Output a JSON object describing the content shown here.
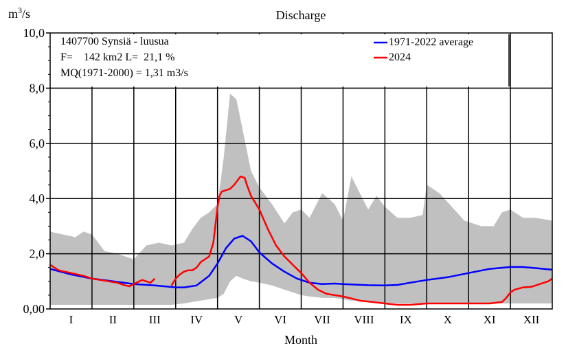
{
  "chart_data": {
    "type": "area",
    "title": "Discharge",
    "ylabel": "m3/s",
    "ylabel_base": "m",
    "ylabel_sup": "3",
    "ylabel_tail": "/s",
    "xlabel": "Month",
    "ylim": [
      0,
      10
    ],
    "ytick_values": [
      0,
      2,
      4,
      6,
      8,
      10
    ],
    "ytick_labels": [
      "0,00",
      "2,0",
      "4,0",
      "6,0",
      "8,0",
      "10,0"
    ],
    "categories": [
      "I",
      "II",
      "III",
      "IV",
      "V",
      "VI",
      "VII",
      "VIII",
      "IX",
      "X",
      "XI",
      "XII"
    ],
    "station": {
      "line1": "1407700 Synsiä - luusua",
      "line2": "F=    142 km2 L=  21,1 %",
      "line3": "MQ(1971-2000) = 1,31 m3/s"
    },
    "legend": [
      {
        "name": "1971-2022 average",
        "color": "#0000ff"
      },
      {
        "name": "2024",
        "color": "#ff0000"
      }
    ],
    "band": {
      "name": "1971-2022 min-max range",
      "color": "#c0c0c0",
      "x": [
        0,
        0.3,
        0.6,
        0.8,
        1.0,
        1.3,
        1.6,
        2.0,
        2.3,
        2.6,
        2.9,
        3.2,
        3.4,
        3.6,
        3.8,
        4.0,
        4.15,
        4.3,
        4.45,
        4.6,
        4.8,
        5.0,
        5.3,
        5.6,
        5.8,
        6.0,
        6.2,
        6.5,
        6.8,
        7.0,
        7.2,
        7.4,
        7.6,
        7.8,
        8.0,
        8.3,
        8.6,
        8.9,
        9.0,
        9.3,
        9.6,
        9.9,
        10.3,
        10.6,
        10.8,
        11.0,
        11.3,
        11.6,
        12.0
      ],
      "upper": [
        2.8,
        2.7,
        2.6,
        2.8,
        2.7,
        2.1,
        2.0,
        1.8,
        2.3,
        2.4,
        2.3,
        2.4,
        2.9,
        3.3,
        3.5,
        3.8,
        5.5,
        7.8,
        7.6,
        6.5,
        5.0,
        4.4,
        3.8,
        3.1,
        3.5,
        3.6,
        3.3,
        4.2,
        3.8,
        3.2,
        4.8,
        4.2,
        3.6,
        4.1,
        3.7,
        3.3,
        3.3,
        3.4,
        4.5,
        4.2,
        3.7,
        3.2,
        3.0,
        3.0,
        3.5,
        3.6,
        3.3,
        3.3,
        3.2
      ],
      "lower": [
        0.15,
        0.15,
        0.15,
        0.15,
        0.15,
        0.15,
        0.15,
        0.15,
        0.15,
        0.15,
        0.15,
        0.2,
        0.25,
        0.3,
        0.35,
        0.4,
        0.55,
        1.0,
        1.2,
        1.1,
        1.0,
        0.95,
        0.85,
        0.7,
        0.6,
        0.5,
        0.45,
        0.4,
        0.4,
        0.35,
        0.3,
        0.3,
        0.28,
        0.25,
        0.22,
        0.2,
        0.2,
        0.2,
        0.2,
        0.2,
        0.2,
        0.2,
        0.2,
        0.2,
        0.2,
        0.2,
        0.2,
        0.2,
        0.2
      ]
    },
    "series": [
      {
        "name": "1971-2022 average",
        "color": "#0000ff",
        "x": [
          0,
          0.5,
          1.0,
          1.5,
          2.0,
          2.5,
          3.0,
          3.2,
          3.5,
          3.8,
          4.0,
          4.2,
          4.4,
          4.6,
          4.8,
          5.0,
          5.3,
          5.6,
          5.9,
          6.2,
          6.5,
          6.8,
          7.0,
          7.3,
          7.6,
          8.0,
          8.3,
          8.6,
          9.0,
          9.5,
          10.0,
          10.5,
          11.0,
          11.3,
          11.6,
          12.0
        ],
        "y": [
          1.45,
          1.25,
          1.1,
          1.0,
          0.9,
          0.85,
          0.78,
          0.78,
          0.85,
          1.2,
          1.65,
          2.2,
          2.55,
          2.65,
          2.45,
          2.05,
          1.65,
          1.35,
          1.1,
          0.95,
          0.9,
          0.92,
          0.9,
          0.88,
          0.86,
          0.85,
          0.87,
          0.95,
          1.05,
          1.15,
          1.3,
          1.45,
          1.52,
          1.52,
          1.48,
          1.42
        ]
      },
      {
        "name": "2024",
        "color": "#ff0000",
        "x": [
          0,
          0.2,
          0.5,
          0.8,
          1.0,
          1.2,
          1.4,
          1.6,
          1.8,
          1.9,
          2.0,
          2.2,
          2.4,
          2.5,
          null,
          2.9,
          3.0,
          3.1,
          3.2,
          3.3,
          3.4,
          3.5,
          3.6,
          3.7,
          3.8,
          3.9,
          4.0,
          4.05,
          4.1,
          4.2,
          4.3,
          4.4,
          4.55,
          4.65,
          4.7,
          4.8,
          5.0,
          5.2,
          5.4,
          5.6,
          5.8,
          6.0,
          6.2,
          6.4,
          6.6,
          6.8,
          7.0,
          7.2,
          7.4,
          7.7,
          8.0,
          8.3,
          8.6,
          9.0,
          9.5,
          10.0,
          10.5,
          10.8,
          10.9,
          11.0,
          11.1,
          11.3,
          11.5,
          11.7,
          11.9,
          12.0
        ],
        "y": [
          1.6,
          1.4,
          1.3,
          1.2,
          1.1,
          1.05,
          1.0,
          0.95,
          0.85,
          0.82,
          0.9,
          1.05,
          0.95,
          1.1,
          null,
          0.85,
          1.1,
          1.25,
          1.35,
          1.4,
          1.4,
          1.5,
          1.7,
          1.8,
          1.9,
          2.4,
          3.7,
          4.1,
          4.25,
          4.3,
          4.35,
          4.5,
          4.8,
          4.75,
          4.5,
          4.1,
          3.6,
          2.9,
          2.3,
          1.9,
          1.6,
          1.3,
          0.95,
          0.7,
          0.55,
          0.5,
          0.45,
          0.38,
          0.3,
          0.25,
          0.2,
          0.15,
          0.15,
          0.2,
          0.2,
          0.2,
          0.2,
          0.25,
          0.4,
          0.6,
          0.7,
          0.78,
          0.8,
          0.9,
          1.0,
          1.1
        ]
      }
    ]
  }
}
